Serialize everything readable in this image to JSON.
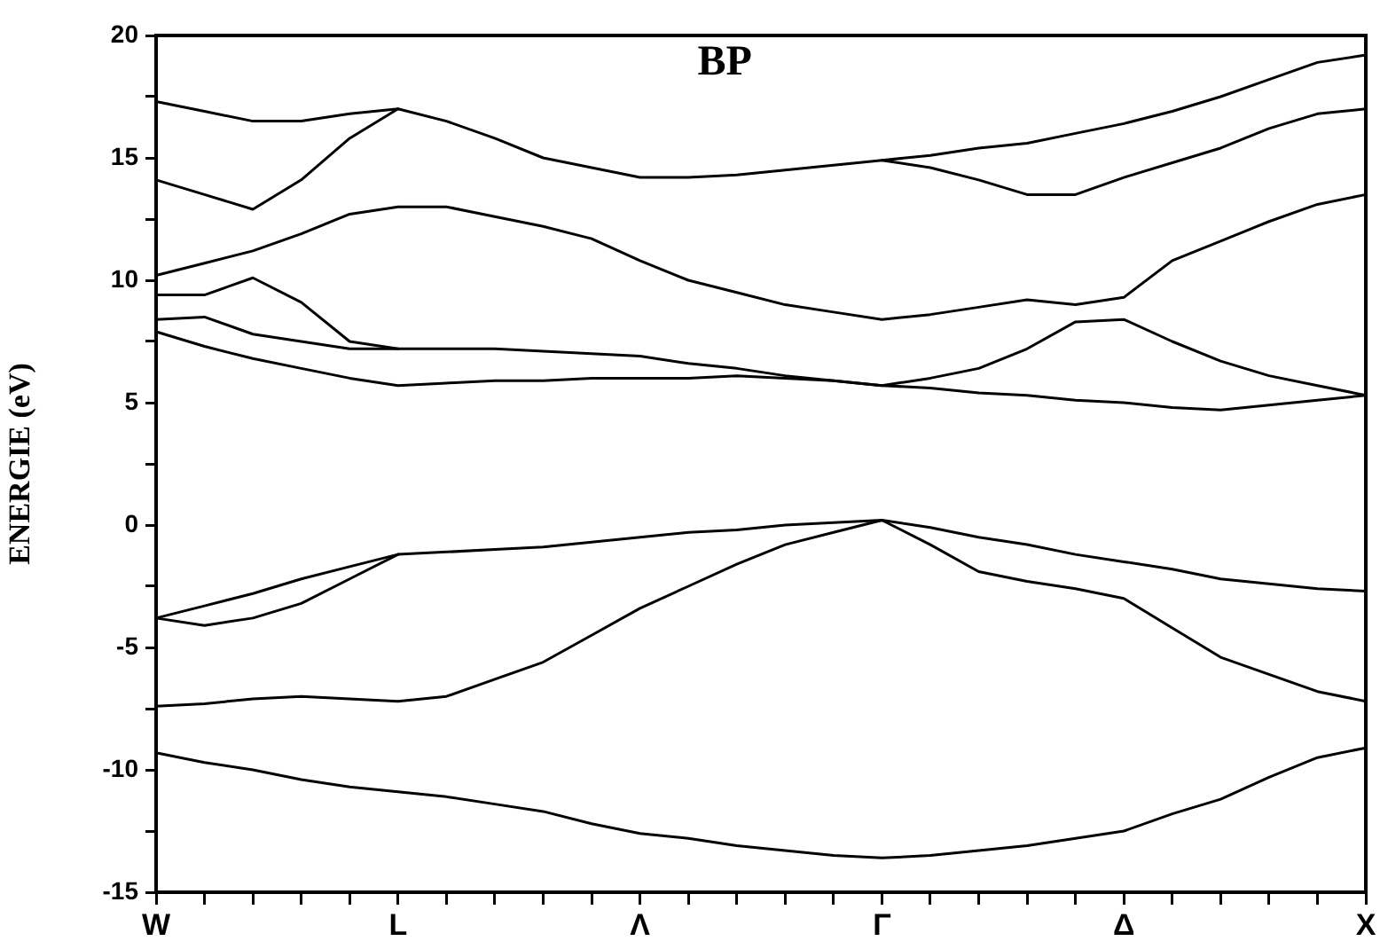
{
  "chart_data": {
    "type": "line",
    "title": "BP",
    "ylabel": "ENERGIE (eV)",
    "categories": [
      "W",
      null,
      null,
      null,
      null,
      "L",
      null,
      null,
      null,
      null,
      "Λ",
      null,
      null,
      null,
      null,
      "Γ",
      null,
      null,
      null,
      null,
      "Δ",
      null,
      null,
      null,
      null,
      "X"
    ],
    "ylim": [
      -15,
      20
    ],
    "yticks": [
      -15,
      {
        "value": -12.5,
        "label": null
      },
      -10,
      {
        "value": -7.5,
        "label": null
      },
      -5,
      {
        "value": -2.5,
        "label": null
      },
      0,
      {
        "value": 2.5,
        "label": null
      },
      5,
      {
        "value": 7.5,
        "label": null
      },
      10,
      {
        "value": 12.5,
        "label": null
      },
      15,
      {
        "value": 17.5,
        "label": null
      },
      20
    ],
    "grid": false,
    "legend": false,
    "marker": "none",
    "line_style": "solid",
    "series": [
      {
        "color": "#000000",
        "values": [
          17.3,
          16.9,
          16.5,
          16.5,
          16.8,
          17.0,
          16.5,
          15.8,
          15.0,
          14.6,
          14.2,
          14.2,
          14.3,
          14.5,
          14.7,
          14.9,
          15.1,
          15.4,
          15.6,
          16.0,
          16.4,
          16.9,
          17.5,
          18.2,
          18.9,
          19.2
        ]
      },
      {
        "color": "#000000",
        "values": [
          14.1,
          13.5,
          12.9,
          14.1,
          15.8,
          17.0,
          null,
          null,
          null,
          null,
          null,
          null,
          null,
          null,
          null,
          null,
          null,
          null,
          null,
          null,
          null,
          null,
          null,
          null,
          null,
          null
        ]
      },
      {
        "color": "#000000",
        "values": [
          null,
          null,
          null,
          null,
          null,
          null,
          null,
          null,
          null,
          null,
          null,
          null,
          null,
          null,
          null,
          14.9,
          14.6,
          14.1,
          13.5,
          13.5,
          14.2,
          14.8,
          15.4,
          16.2,
          16.8,
          17.0
        ]
      },
      {
        "color": "#000000",
        "values": [
          10.2,
          10.7,
          11.2,
          11.9,
          12.7,
          13.0,
          13.0,
          12.6,
          12.2,
          11.7,
          10.8,
          10.0,
          9.5,
          9.0,
          8.7,
          8.4,
          8.6,
          8.9,
          9.2,
          9.0,
          9.3,
          10.8,
          11.6,
          12.4,
          13.1,
          13.5
        ]
      },
      {
        "color": "#000000",
        "values": [
          9.4,
          9.4,
          10.1,
          9.1,
          7.5,
          7.2,
          null,
          null,
          null,
          null,
          null,
          null,
          null,
          null,
          null,
          null,
          null,
          null,
          null,
          null,
          null,
          null,
          null,
          null,
          null,
          null
        ]
      },
      {
        "color": "#000000",
        "values": [
          8.4,
          8.5,
          7.8,
          7.5,
          7.2,
          7.2,
          7.2,
          7.2,
          7.1,
          7.0,
          6.9,
          6.6,
          6.4,
          6.1,
          5.9,
          5.7,
          6.0,
          6.4,
          7.2,
          8.3,
          8.4,
          7.5,
          6.7,
          6.1,
          5.7,
          5.3
        ]
      },
      {
        "color": "#000000",
        "values": [
          7.9,
          7.3,
          6.8,
          6.4,
          6.0,
          5.7,
          5.8,
          5.9,
          5.9,
          6.0,
          6.0,
          6.0,
          6.1,
          6.0,
          5.9,
          5.7,
          5.6,
          5.4,
          5.3,
          5.1,
          5.0,
          4.8,
          4.7,
          4.9,
          5.1,
          5.3
        ]
      },
      {
        "color": "#000000",
        "values": [
          -3.8,
          -3.3,
          -2.8,
          -2.2,
          -1.7,
          -1.2,
          -1.1,
          -1.0,
          -0.9,
          -0.7,
          -0.5,
          -0.3,
          -0.2,
          0.0,
          0.1,
          0.2,
          -0.1,
          -0.5,
          -0.8,
          -1.2,
          -1.5,
          -1.8,
          -2.2,
          -2.4,
          -2.6,
          -2.7
        ]
      },
      {
        "color": "#000000",
        "values": [
          -3.8,
          -4.1,
          -3.8,
          -3.2,
          -2.2,
          -1.2,
          null,
          null,
          null,
          null,
          null,
          null,
          null,
          null,
          null,
          null,
          null,
          null,
          null,
          null,
          null,
          null,
          null,
          null,
          null,
          null
        ]
      },
      {
        "color": "#000000",
        "values": [
          -7.4,
          -7.3,
          -7.1,
          -7.0,
          -7.1,
          -7.2,
          -7.0,
          -6.3,
          -5.6,
          -4.5,
          -3.4,
          -2.5,
          -1.6,
          -0.8,
          -0.3,
          0.2,
          -0.8,
          -1.9,
          -2.3,
          -2.6,
          -3.0,
          -4.2,
          -5.4,
          -6.1,
          -6.8,
          -7.2
        ]
      },
      {
        "color": "#000000",
        "values": [
          -9.3,
          -9.7,
          -10.0,
          -10.4,
          -10.7,
          -10.9,
          -11.1,
          -11.4,
          -11.7,
          -12.2,
          -12.6,
          -12.8,
          -13.1,
          -13.3,
          -13.5,
          -13.6,
          -13.5,
          -13.3,
          -13.1,
          -12.8,
          -12.5,
          -11.8,
          -11.2,
          -10.3,
          -9.5,
          -9.1
        ]
      }
    ]
  }
}
